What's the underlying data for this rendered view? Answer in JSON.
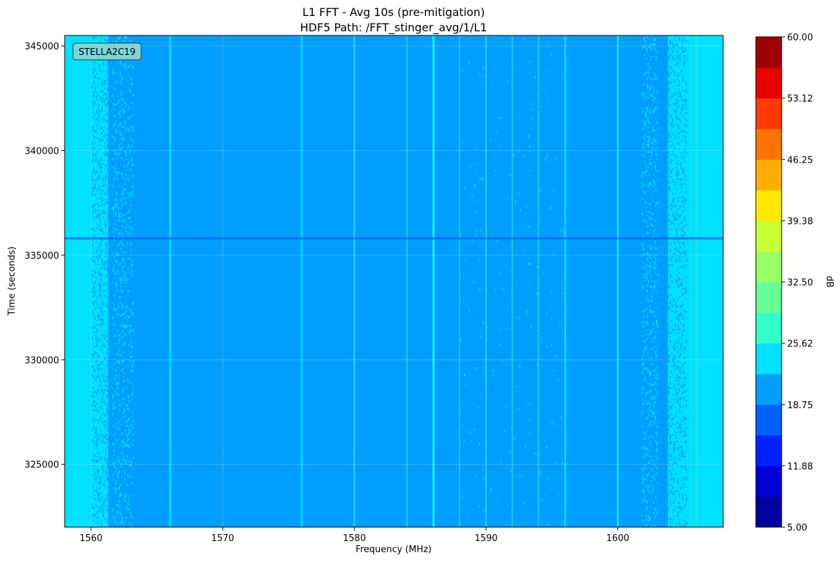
{
  "chart_data": {
    "type": "heatmap",
    "title": "L1 FFT - Avg 10s (pre-mitigation)",
    "subtitle": "HDF5 Path: /FFT_stinger_avg/1/L1",
    "xlabel": "Frequency (MHz)",
    "ylabel": "Time (seconds)",
    "colorbar_label": "dB",
    "annotation": "STELLA2C19",
    "colormap": "jet",
    "grid": true,
    "xlim": [
      1558,
      1608
    ],
    "ylim": [
      322000,
      345500
    ],
    "zlim": [
      5,
      60
    ],
    "x_ticks": [
      "1560",
      "1570",
      "1580",
      "1590",
      "1600"
    ],
    "x_tick_values": [
      1560,
      1570,
      1580,
      1590,
      1600
    ],
    "y_ticks": [
      "325000",
      "330000",
      "335000",
      "340000",
      "345000"
    ],
    "y_tick_values": [
      325000,
      330000,
      335000,
      340000,
      345000
    ],
    "colorbar_ticks": [
      "5.00",
      "11.88",
      "18.75",
      "25.62",
      "32.50",
      "39.38",
      "46.25",
      "53.12",
      "60.00"
    ],
    "colorbar_tick_values": [
      5.0,
      11.88,
      18.75,
      25.62,
      32.5,
      39.38,
      46.25,
      53.12,
      60.0
    ],
    "colorbar_levels": [
      "#00009f",
      "#0000d6",
      "#0022ff",
      "#0060ff",
      "#009fff",
      "#00e0ff",
      "#35ffc8",
      "#64ff96",
      "#98ff64",
      "#c8ff35",
      "#ffea00",
      "#ffae00",
      "#ff7400",
      "#ff3a00",
      "#e80000",
      "#9f0000"
    ],
    "colors": {
      "background_level": "#009fff",
      "edge_level": "#00e0ff",
      "spur_level": "#35ffc8"
    },
    "regions": [
      {
        "x_start": 1558.0,
        "x_end": 1561.3,
        "level_db": 24.0,
        "note": "band edge, elevated"
      },
      {
        "x_start": 1561.3,
        "x_end": 1563.0,
        "level_db": 22.0,
        "note": "speckled transition"
      },
      {
        "x_start": 1563.0,
        "x_end": 1602.0,
        "level_db": 20.5,
        "note": "passband floor"
      },
      {
        "x_start": 1602.0,
        "x_end": 1603.8,
        "level_db": 22.0,
        "note": "speckled transition"
      },
      {
        "x_start": 1603.8,
        "x_end": 1608.0,
        "level_db": 24.0,
        "note": "band edge, elevated"
      }
    ],
    "spurs_mhz": [
      1566,
      1576,
      1580,
      1584,
      1586,
      1588,
      1590,
      1592,
      1594,
      1596,
      1600,
      1606
    ],
    "dropout_time_s": 335800,
    "dropout_level_db": 18.0
  }
}
